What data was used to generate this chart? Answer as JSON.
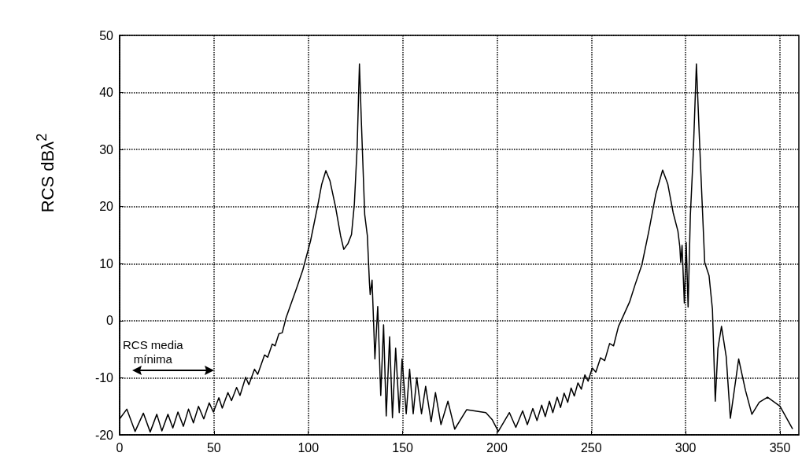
{
  "chart_data": {
    "type": "line",
    "ylabel": "RCS dBλ$^{2}$",
    "annotations": [
      "RCS media mínima"
    ],
    "xlim": [
      0,
      360
    ],
    "xticks": [
      0,
      50,
      100,
      150,
      200,
      250,
      300,
      350
    ],
    "ylim": [
      -20,
      50
    ],
    "yticks": [
      -20,
      -10,
      0,
      10,
      20,
      30,
      40,
      50
    ],
    "grid": true,
    "marker": "none",
    "line_style": "solid",
    "series": [
      {
        "color": "#000000",
        "x": [
          0,
          3.8,
          8.2,
          12.6,
          16.2,
          19.7,
          22.4,
          25.6,
          28.2,
          30.9,
          33.8,
          36.5,
          39.1,
          41.8,
          44.6,
          47.5,
          49.7,
          52.6,
          54.4,
          57.4,
          59.3,
          62,
          63.8,
          66.8,
          68.5,
          71.5,
          73.2,
          76.8,
          78.5,
          80.9,
          82.4,
          84.4,
          86.2,
          88.2,
          90.9,
          93.8,
          97.1,
          101.2,
          104.9,
          107.1,
          109.3,
          111.5,
          114.4,
          117.1,
          118.8,
          121,
          122.9,
          124.4,
          125.9,
          127.1,
          128.2,
          129.9,
          131.3,
          132.4,
          132.8,
          133.8,
          135.3,
          136.8,
          138.4,
          139.9,
          141.3,
          143.1,
          144.6,
          146.3,
          148.2,
          149.7,
          151.9,
          153.7,
          155.6,
          157.5,
          160,
          162.2,
          165.1,
          167.4,
          170.3,
          174,
          177.6,
          183.9,
          194.1,
          197.4,
          200.7,
          206.6,
          210,
          213.6,
          216.1,
          219,
          221.2,
          223.7,
          225.6,
          227.8,
          229.6,
          231.9,
          233.7,
          235.6,
          237.5,
          239.3,
          241,
          242.9,
          244.7,
          246.6,
          248.3,
          250.5,
          252.4,
          254.9,
          257.1,
          259.7,
          261.8,
          264.4,
          267.3,
          270.3,
          273.2,
          276.8,
          280.5,
          284.2,
          287.8,
          290.5,
          293.4,
          295.9,
          296.9,
          297.4,
          298.1,
          299.3,
          300.3,
          301.3,
          302.5,
          304,
          305.7,
          307.6,
          310.1,
          312.4,
          314.2,
          315.7,
          317.1,
          319,
          321.5,
          323.7,
          328.1,
          331.7,
          335.1,
          339,
          343.4,
          350,
          356.6
        ],
        "values": [
          -17.2,
          -15.5,
          -19.4,
          -16.2,
          -19.5,
          -16.4,
          -19.3,
          -16.4,
          -18.8,
          -16,
          -18.5,
          -15.5,
          -17.9,
          -15,
          -17.2,
          -14.4,
          -16,
          -13.5,
          -15.3,
          -12.6,
          -14,
          -11.7,
          -13.1,
          -9.9,
          -11.2,
          -8.5,
          -9.4,
          -6,
          -6.4,
          -4.1,
          -4.4,
          -2.3,
          -2.1,
          0.5,
          3,
          5.7,
          8.9,
          14,
          20,
          23.9,
          26.3,
          24.5,
          20,
          14.9,
          12.5,
          13.5,
          15.1,
          20.4,
          30.5,
          45,
          34.2,
          18.6,
          14.9,
          6.7,
          4.6,
          7.1,
          -6.7,
          2.5,
          -13.1,
          -0.7,
          -16.7,
          -2.8,
          -17,
          -4.8,
          -16.1,
          -6.7,
          -16.3,
          -8.5,
          -16.3,
          -10,
          -16.3,
          -11.5,
          -17.7,
          -12.6,
          -18.2,
          -14.1,
          -19,
          -15.6,
          -16.1,
          -17.3,
          -19.4,
          -16.1,
          -18.7,
          -15.8,
          -18.2,
          -15.4,
          -17.5,
          -14.8,
          -16.8,
          -14.1,
          -16.1,
          -13.4,
          -15.2,
          -12.7,
          -14.3,
          -11.8,
          -13.2,
          -10.9,
          -12,
          -9.5,
          -10.6,
          -8.3,
          -9,
          -6.5,
          -7,
          -4,
          -4.4,
          -1,
          1.1,
          3.3,
          6.3,
          9.8,
          15.7,
          22.2,
          26.4,
          24,
          18.9,
          15.7,
          13,
          10.2,
          13.2,
          3.1,
          13.7,
          2.4,
          18.5,
          29,
          45,
          29.5,
          10.2,
          7.9,
          2,
          -14.1,
          -4.9,
          -1,
          -6.3,
          -17.1,
          -6.7,
          -12.2,
          -16.4,
          -14.3,
          -13.4,
          -15,
          -18.9
        ]
      }
    ]
  }
}
